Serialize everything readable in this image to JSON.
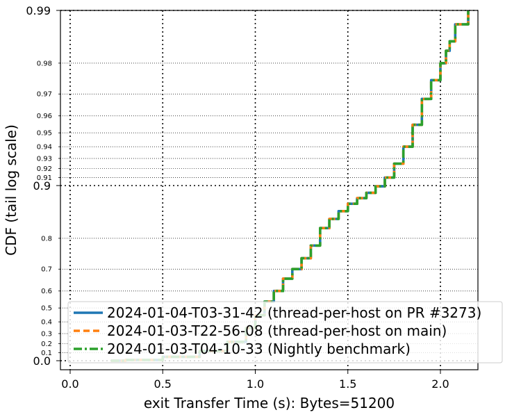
{
  "chart_data": {
    "type": "line",
    "title": "",
    "xlabel": "exit Transfer Time (s): Bytes=51200",
    "ylabel": "CDF (tail log scale)",
    "xlim": [
      -0.05,
      2.2
    ],
    "y_scale": "tail-log (logit-like): -log10(1 - p)",
    "ylim": [
      0.0,
      0.99
    ],
    "x_ticks": [
      "0.0",
      "0.5",
      "1.0",
      "1.5",
      "2.0"
    ],
    "y_major_ticks": [
      "0.0",
      "0.9",
      "0.99"
    ],
    "y_minor_ticks": [
      "0.1",
      "0.2",
      "0.3",
      "0.4",
      "0.5",
      "0.6",
      "0.7",
      "0.8",
      "0.91",
      "0.92",
      "0.93",
      "0.94",
      "0.95",
      "0.96",
      "0.97",
      "0.98"
    ],
    "grid": true,
    "legend_position": "lower-right",
    "series": [
      {
        "name": "2024-01-04-T03-31-42 (thread-per-host on PR #3273)",
        "color": "#1f77b4",
        "style": "solid",
        "points": [
          [
            0.22,
            0.0
          ],
          [
            0.3,
            0.01
          ],
          [
            0.5,
            0.05
          ],
          [
            0.7,
            0.12
          ],
          [
            0.85,
            0.22
          ],
          [
            0.95,
            0.35
          ],
          [
            1.0,
            0.45
          ],
          [
            1.05,
            0.54
          ],
          [
            1.1,
            0.6
          ],
          [
            1.15,
            0.66
          ],
          [
            1.2,
            0.7
          ],
          [
            1.25,
            0.74
          ],
          [
            1.3,
            0.78
          ],
          [
            1.35,
            0.825
          ],
          [
            1.4,
            0.845
          ],
          [
            1.45,
            0.86
          ],
          [
            1.5,
            0.873
          ],
          [
            1.55,
            0.882
          ],
          [
            1.6,
            0.89
          ],
          [
            1.65,
            0.899
          ],
          [
            1.7,
            0.91
          ],
          [
            1.75,
            0.925
          ],
          [
            1.8,
            0.94
          ],
          [
            1.85,
            0.955
          ],
          [
            1.9,
            0.968
          ],
          [
            1.95,
            0.975
          ],
          [
            2.0,
            0.98
          ],
          [
            2.03,
            0.983
          ],
          [
            2.05,
            0.985
          ],
          [
            2.08,
            0.988
          ],
          [
            2.15,
            0.99
          ]
        ]
      },
      {
        "name": "2024-01-03-T22-56-08 (thread-per-host on main)",
        "color": "#ff7f0e",
        "style": "dashed",
        "points": [
          [
            0.22,
            0.0
          ],
          [
            0.3,
            0.01
          ],
          [
            0.5,
            0.05
          ],
          [
            0.7,
            0.12
          ],
          [
            0.85,
            0.22
          ],
          [
            0.95,
            0.35
          ],
          [
            1.0,
            0.45
          ],
          [
            1.05,
            0.54
          ],
          [
            1.1,
            0.6
          ],
          [
            1.15,
            0.66
          ],
          [
            1.2,
            0.7
          ],
          [
            1.25,
            0.74
          ],
          [
            1.3,
            0.78
          ],
          [
            1.35,
            0.825
          ],
          [
            1.4,
            0.845
          ],
          [
            1.45,
            0.86
          ],
          [
            1.5,
            0.873
          ],
          [
            1.55,
            0.882
          ],
          [
            1.6,
            0.89
          ],
          [
            1.65,
            0.899
          ],
          [
            1.7,
            0.91
          ],
          [
            1.75,
            0.925
          ],
          [
            1.8,
            0.94
          ],
          [
            1.85,
            0.955
          ],
          [
            1.9,
            0.968
          ],
          [
            1.95,
            0.975
          ],
          [
            2.0,
            0.98
          ],
          [
            2.03,
            0.983
          ],
          [
            2.05,
            0.985
          ],
          [
            2.08,
            0.988
          ],
          [
            2.15,
            0.99
          ]
        ]
      },
      {
        "name": "2024-01-03-T04-10-33 (Nightly benchmark)",
        "color": "#2ca02c",
        "style": "dashdot",
        "points": [
          [
            0.22,
            0.0
          ],
          [
            0.3,
            0.01
          ],
          [
            0.5,
            0.05
          ],
          [
            0.7,
            0.12
          ],
          [
            0.85,
            0.22
          ],
          [
            0.95,
            0.35
          ],
          [
            1.0,
            0.45
          ],
          [
            1.05,
            0.54
          ],
          [
            1.1,
            0.6
          ],
          [
            1.15,
            0.66
          ],
          [
            1.2,
            0.7
          ],
          [
            1.25,
            0.74
          ],
          [
            1.3,
            0.78
          ],
          [
            1.35,
            0.825
          ],
          [
            1.4,
            0.845
          ],
          [
            1.45,
            0.86
          ],
          [
            1.5,
            0.873
          ],
          [
            1.55,
            0.882
          ],
          [
            1.6,
            0.89
          ],
          [
            1.65,
            0.899
          ],
          [
            1.7,
            0.91
          ],
          [
            1.75,
            0.925
          ],
          [
            1.8,
            0.94
          ],
          [
            1.85,
            0.955
          ],
          [
            1.9,
            0.968
          ],
          [
            1.95,
            0.975
          ],
          [
            2.0,
            0.98
          ],
          [
            2.03,
            0.983
          ],
          [
            2.05,
            0.985
          ],
          [
            2.08,
            0.988
          ],
          [
            2.15,
            0.99
          ]
        ]
      }
    ]
  }
}
